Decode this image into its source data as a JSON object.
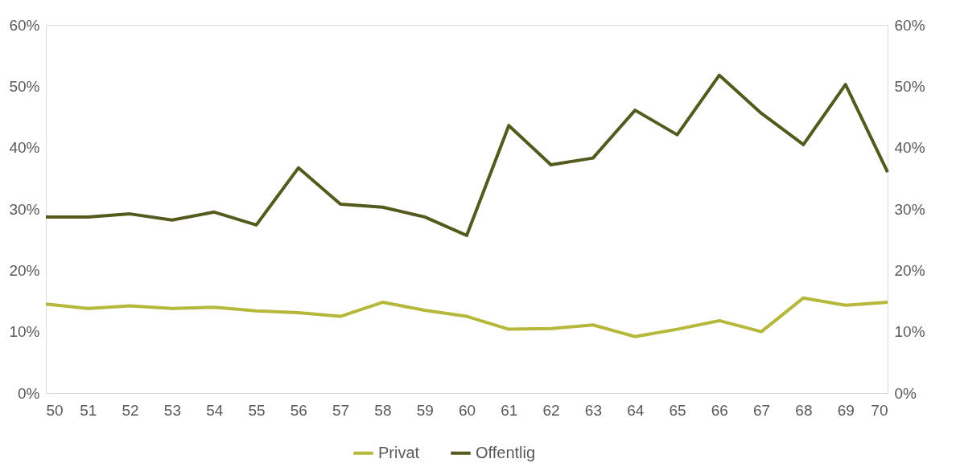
{
  "chart_data": {
    "type": "line",
    "x": [
      50,
      51,
      52,
      53,
      54,
      55,
      56,
      57,
      58,
      59,
      60,
      61,
      62,
      63,
      64,
      65,
      66,
      67,
      68,
      69,
      70
    ],
    "xlim": [
      50,
      70
    ],
    "xticks": [
      50,
      51,
      52,
      53,
      54,
      55,
      56,
      57,
      58,
      59,
      60,
      61,
      62,
      63,
      64,
      65,
      66,
      67,
      68,
      69,
      70
    ],
    "ylim": [
      0,
      60
    ],
    "yticks": [
      {
        "value": 0,
        "label": "0%"
      },
      {
        "value": 10,
        "label": "10%"
      },
      {
        "value": 20,
        "label": "20%"
      },
      {
        "value": 30,
        "label": "30%"
      },
      {
        "value": 40,
        "label": "40%"
      },
      {
        "value": 50,
        "label": "50%"
      },
      {
        "value": 60,
        "label": "60%"
      }
    ],
    "y2lim": [
      0,
      60
    ],
    "y2ticks": [
      {
        "value": 0,
        "label": "0%"
      },
      {
        "value": 10,
        "label": "10%"
      },
      {
        "value": 20,
        "label": "20%"
      },
      {
        "value": 30,
        "label": "30%"
      },
      {
        "value": 40,
        "label": "40%"
      },
      {
        "value": 50,
        "label": "50%"
      },
      {
        "value": 60,
        "label": "60%"
      }
    ],
    "series": [
      {
        "name": "Privat",
        "color": "#b5b83a",
        "values": [
          14.5,
          13.8,
          14.2,
          13.8,
          14.0,
          13.4,
          13.1,
          12.5,
          14.8,
          13.5,
          12.5,
          10.4,
          10.5,
          11.1,
          9.2,
          10.4,
          11.8,
          10.0,
          15.5,
          14.3,
          14.8
        ]
      },
      {
        "name": "Offentlig",
        "color": "#545a1e",
        "values": [
          28.7,
          28.7,
          29.2,
          28.2,
          29.5,
          27.4,
          36.7,
          30.8,
          30.3,
          28.7,
          25.7,
          43.6,
          37.2,
          38.3,
          46.1,
          42.1,
          51.8,
          45.6,
          40.5,
          50.3,
          36.0
        ]
      }
    ],
    "grid": false,
    "legend": "bottom",
    "marker": "none",
    "line_style": "solid"
  }
}
